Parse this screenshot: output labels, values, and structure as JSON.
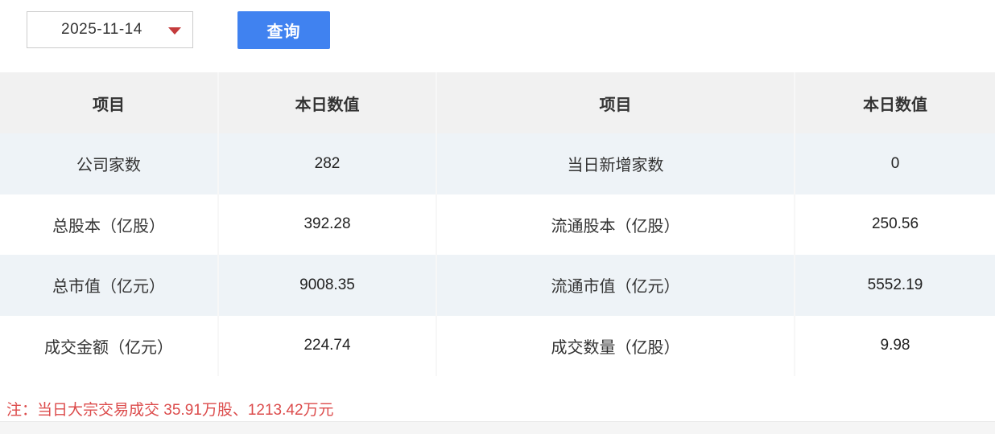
{
  "controls": {
    "date_select": {
      "value": "2025-11-14"
    },
    "query_button": {
      "label": "查询"
    }
  },
  "table": {
    "headers": [
      "项目",
      "本日数值",
      "项目",
      "本日数值"
    ],
    "rows": [
      [
        "公司家数",
        "282",
        "当日新增家数",
        "0"
      ],
      [
        "总股本（亿股）",
        "392.28",
        "流通股本（亿股）",
        "250.56"
      ],
      [
        "总市值（亿元）",
        "9008.35",
        "流通市值（亿元）",
        "5552.19"
      ],
      [
        "成交金额（亿元）",
        "224.74",
        "成交数量（亿股）",
        "9.98"
      ]
    ]
  },
  "note": {
    "text": "注：当日大宗交易成交 35.91万股、1213.42万元"
  },
  "colors": {
    "accent_blue": "#4082f0",
    "note_red": "#dc4c4c",
    "header_gray": "#f1f1f1",
    "row_stripe_blue": "#eef3f7",
    "arrow_red": "#c43b3c"
  }
}
